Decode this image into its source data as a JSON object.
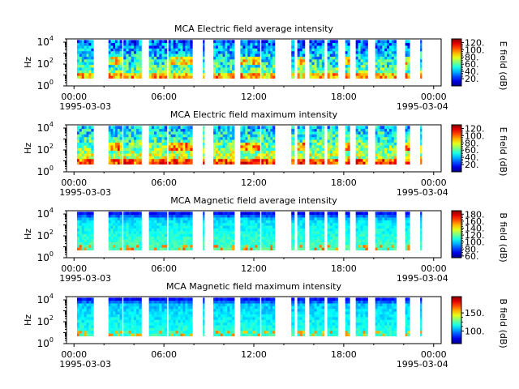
{
  "chart_data": [
    {
      "type": "heatmap",
      "title": "MCA  Electric field average intensity",
      "ylabel": "Hz",
      "yscale": "log",
      "ylim": [
        1,
        20000
      ],
      "yticks": [
        {
          "exp": "0"
        },
        {
          "exp": "2"
        },
        {
          "exp": "4"
        }
      ],
      "xticks": [
        "00:00",
        "06:00",
        "12:00",
        "18:00",
        "00:00"
      ],
      "xdates": [
        "1995-03-03",
        "1995-03-04"
      ],
      "xlim_hours": [
        -0.5,
        24.5
      ],
      "colorbar": {
        "label": "E field (dB)",
        "ticks": [
          "20.",
          "40.",
          "60.",
          "80.",
          "100.",
          "120."
        ],
        "range": [
          0,
          130
        ]
      },
      "field": "E",
      "stat": "average",
      "data_intervals_hours": [
        [
          0.2,
          1.3
        ],
        [
          2.3,
          3.2
        ],
        [
          3.3,
          4.5
        ],
        [
          5.0,
          6.2
        ],
        [
          6.3,
          7.9
        ],
        [
          8.6,
          8.7
        ],
        [
          9.3,
          10.7
        ],
        [
          11.1,
          12.4
        ],
        [
          12.5,
          13.4
        ],
        [
          14.5,
          14.7
        ],
        [
          14.9,
          15.4
        ],
        [
          15.7,
          16.7
        ],
        [
          16.9,
          17.6
        ],
        [
          18.1,
          18.4
        ],
        [
          18.8,
          19.6
        ],
        [
          20.1,
          21.5
        ],
        [
          22.1,
          22.4
        ],
        [
          23.1,
          23.2
        ]
      ]
    },
    {
      "type": "heatmap",
      "title": "MCA  Electric field maximum intensity",
      "ylabel": "Hz",
      "yscale": "log",
      "ylim": [
        1,
        20000
      ],
      "yticks": [
        {
          "exp": "0"
        },
        {
          "exp": "2"
        },
        {
          "exp": "4"
        }
      ],
      "xticks": [
        "00:00",
        "06:00",
        "12:00",
        "18:00",
        "00:00"
      ],
      "xdates": [
        "1995-03-03",
        "1995-03-04"
      ],
      "xlim_hours": [
        -0.5,
        24.5
      ],
      "colorbar": {
        "label": "E field (dB)",
        "ticks": [
          "20.",
          "40.",
          "60.",
          "80.",
          "100.",
          "120."
        ],
        "range": [
          0,
          130
        ]
      },
      "field": "E",
      "stat": "maximum",
      "data_intervals_hours": [
        [
          0.2,
          1.3
        ],
        [
          2.3,
          3.2
        ],
        [
          3.3,
          4.5
        ],
        [
          5.0,
          6.2
        ],
        [
          6.3,
          7.9
        ],
        [
          8.6,
          8.7
        ],
        [
          9.3,
          10.7
        ],
        [
          11.1,
          12.4
        ],
        [
          12.5,
          13.4
        ],
        [
          14.5,
          14.7
        ],
        [
          14.9,
          15.4
        ],
        [
          15.7,
          16.7
        ],
        [
          16.9,
          17.6
        ],
        [
          18.1,
          18.4
        ],
        [
          18.8,
          19.6
        ],
        [
          20.1,
          21.5
        ],
        [
          22.1,
          22.4
        ],
        [
          23.1,
          23.2
        ]
      ]
    },
    {
      "type": "heatmap",
      "title": "MCA  Magnetic field average intensity",
      "ylabel": "Hz",
      "yscale": "log",
      "ylim": [
        1,
        20000
      ],
      "yticks": [
        {
          "exp": "0"
        },
        {
          "exp": "2"
        },
        {
          "exp": "4"
        }
      ],
      "xticks": [
        "00:00",
        "06:00",
        "12:00",
        "18:00",
        "00:00"
      ],
      "xdates": [
        "1995-03-03",
        "1995-03-04"
      ],
      "xlim_hours": [
        -0.5,
        24.5
      ],
      "colorbar": {
        "label": "B field (dB)",
        "ticks": [
          "60.",
          "80.",
          "100.",
          "120.",
          "140.",
          "160.",
          "180."
        ],
        "range": [
          55,
          190
        ]
      },
      "field": "B",
      "stat": "average",
      "data_intervals_hours": [
        [
          0.2,
          1.3
        ],
        [
          2.3,
          3.2
        ],
        [
          3.3,
          4.5
        ],
        [
          5.0,
          6.2
        ],
        [
          6.3,
          7.9
        ],
        [
          8.6,
          8.7
        ],
        [
          9.3,
          10.7
        ],
        [
          11.1,
          12.4
        ],
        [
          12.5,
          13.4
        ],
        [
          14.5,
          14.7
        ],
        [
          14.9,
          15.4
        ],
        [
          15.7,
          16.7
        ],
        [
          16.9,
          17.6
        ],
        [
          18.1,
          18.4
        ],
        [
          18.8,
          19.6
        ],
        [
          20.1,
          21.5
        ],
        [
          22.1,
          22.4
        ],
        [
          23.1,
          23.2
        ]
      ]
    },
    {
      "type": "heatmap",
      "title": "MCA  Magnetic field maximum intensity",
      "ylabel": "Hz",
      "yscale": "log",
      "ylim": [
        1,
        20000
      ],
      "yticks": [
        {
          "exp": "0"
        },
        {
          "exp": "2"
        },
        {
          "exp": "4"
        }
      ],
      "xticks": [
        "00:00",
        "06:00",
        "12:00",
        "18:00",
        "00:00"
      ],
      "xdates": [
        "1995-03-03",
        "1995-03-04"
      ],
      "xlim_hours": [
        -0.5,
        24.5
      ],
      "colorbar": {
        "label": "B field (dB)",
        "ticks": [
          "100.",
          "150."
        ],
        "range": [
          65,
          195
        ]
      },
      "field": "B",
      "stat": "maximum",
      "data_intervals_hours": [
        [
          0.2,
          1.3
        ],
        [
          2.3,
          3.2
        ],
        [
          3.3,
          4.5
        ],
        [
          5.0,
          6.2
        ],
        [
          6.3,
          7.9
        ],
        [
          8.6,
          8.7
        ],
        [
          9.3,
          10.7
        ],
        [
          11.1,
          12.4
        ],
        [
          12.5,
          13.4
        ],
        [
          14.5,
          14.7
        ],
        [
          14.9,
          15.4
        ],
        [
          15.7,
          16.7
        ],
        [
          16.9,
          17.6
        ],
        [
          18.1,
          18.4
        ],
        [
          18.8,
          19.6
        ],
        [
          20.1,
          21.5
        ],
        [
          22.1,
          22.4
        ],
        [
          23.1,
          23.2
        ]
      ]
    }
  ]
}
